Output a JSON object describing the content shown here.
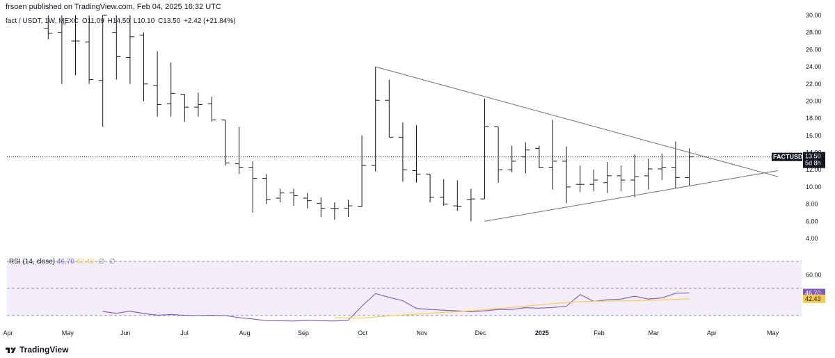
{
  "publisher_line": "frsoen published on TradingView.com, Feb 04, 2025 16:32 UTC",
  "legend": {
    "symbol": "fact / USDT, 1W, MEXC",
    "open": "O11.09",
    "high": "H14.50",
    "low": "L10.10",
    "close": "C13.50",
    "change": "+2.42 (+21.84%)"
  },
  "price_tag": {
    "symbol": "FACTUSDT",
    "price": "13.50",
    "countdown": "5d 8h"
  },
  "rsi_legend": {
    "label": "RSI (14, close)",
    "rsi": "46.70",
    "ma": "42.43",
    "na1": "∅",
    "na2": "∅"
  },
  "rsi_tags": {
    "rsi": "46.70",
    "ma": "42.43"
  },
  "brand": "TradingView",
  "colors": {
    "bar": "#131722",
    "line": "#787b86",
    "rsi": "#7e57c2",
    "rsi_ma": "#f7c948",
    "rsi_band": "#ede7f6"
  },
  "chart_data": [
    {
      "type": "ohlc",
      "y_ticks": [
        "30.00",
        "28.00",
        "26.00",
        "24.00",
        "22.00",
        "20.00",
        "18.00",
        "16.00",
        "14.00",
        "12.00",
        "10.00",
        "8.00",
        "6.00",
        "4.00"
      ],
      "ylim": [
        3,
        30
      ],
      "x_ticks": [
        "Apr",
        "May",
        "Jun",
        "Jul",
        "Aug",
        "Sep",
        "Oct",
        "Nov",
        "Dec",
        "2025",
        "Feb",
        "Mar",
        "Apr",
        "May"
      ],
      "x_ticks_week": [
        0,
        4.3,
        8.6,
        13,
        17.3,
        21.6,
        26,
        30.3,
        34.6,
        39,
        43.3,
        47.3,
        51.6,
        56
      ],
      "bars": [
        {
          "w": 3,
          "o": 28.5,
          "h": 30,
          "l": 27.2,
          "c": 27.9
        },
        {
          "w": 4,
          "o": 28.0,
          "h": 30,
          "l": 22,
          "c": 29.0
        },
        {
          "w": 5,
          "o": 27.0,
          "h": 30,
          "l": 23,
          "c": 27.0
        },
        {
          "w": 6,
          "o": 26.9,
          "h": 30,
          "l": 22,
          "c": 22.5
        },
        {
          "w": 7,
          "o": 22.4,
          "h": 30,
          "l": 17,
          "c": 30
        },
        {
          "w": 8,
          "o": 28.0,
          "h": 30,
          "l": 22.5,
          "c": 25.2
        },
        {
          "w": 9,
          "o": 25.1,
          "h": 30,
          "l": 22,
          "c": 27.5
        },
        {
          "w": 10,
          "o": 27.7,
          "h": 28,
          "l": 20,
          "c": 22
        },
        {
          "w": 11,
          "o": 21.8,
          "h": 25.8,
          "l": 18.2,
          "c": 19.6
        },
        {
          "w": 12,
          "o": 19.7,
          "h": 24.5,
          "l": 18.2,
          "c": 20.9
        },
        {
          "w": 13,
          "o": 20.8,
          "h": 20.8,
          "l": 17.6,
          "c": 19.3
        },
        {
          "w": 14,
          "o": 19.3,
          "h": 21,
          "l": 18.2,
          "c": 19.6
        },
        {
          "w": 15,
          "o": 19.7,
          "h": 20.5,
          "l": 17.6,
          "c": 17.8
        },
        {
          "w": 16,
          "o": 17.8,
          "h": 17.8,
          "l": 12.5,
          "c": 12.8
        },
        {
          "w": 17,
          "o": 12.7,
          "h": 17,
          "l": 11.5,
          "c": 12.3
        },
        {
          "w": 18,
          "o": 12.3,
          "h": 13,
          "l": 7.0,
          "c": 11.0
        },
        {
          "w": 19,
          "o": 11.0,
          "h": 11.5,
          "l": 8.0,
          "c": 8.5
        },
        {
          "w": 20,
          "o": 8.7,
          "h": 9.8,
          "l": 8.2,
          "c": 9.3
        },
        {
          "w": 21,
          "o": 9.3,
          "h": 9.8,
          "l": 7.8,
          "c": 9.0
        },
        {
          "w": 22,
          "o": 8.7,
          "h": 9.3,
          "l": 7.5,
          "c": 8.4
        },
        {
          "w": 23,
          "o": 8.1,
          "h": 8.8,
          "l": 6.5,
          "c": 7.5
        },
        {
          "w": 24,
          "o": 7.5,
          "h": 8.2,
          "l": 6.2,
          "c": 7.5
        },
        {
          "w": 25,
          "o": 7.5,
          "h": 8.5,
          "l": 6.5,
          "c": 7.8
        },
        {
          "w": 26,
          "o": 7.7,
          "h": 16,
          "l": 7.7,
          "c": 12.5
        },
        {
          "w": 27,
          "o": 12.5,
          "h": 24.0,
          "l": 11.8,
          "c": 20.1
        },
        {
          "w": 28,
          "o": 20.1,
          "h": 22.5,
          "l": 15.8,
          "c": 15.8
        },
        {
          "w": 29,
          "o": 15.8,
          "h": 17.5,
          "l": 10.6,
          "c": 12.0
        },
        {
          "w": 30,
          "o": 11.9,
          "h": 17.2,
          "l": 10.5,
          "c": 11.5
        },
        {
          "w": 31,
          "o": 11.5,
          "h": 11.5,
          "l": 8.2,
          "c": 8.8
        },
        {
          "w": 32,
          "o": 8.8,
          "h": 10.9,
          "l": 7.8,
          "c": 8.0
        },
        {
          "w": 33,
          "o": 7.8,
          "h": 10.8,
          "l": 7.2,
          "c": 7.7
        },
        {
          "w": 34,
          "o": 8.5,
          "h": 9.8,
          "l": 6.0,
          "c": 8.6
        },
        {
          "w": 35,
          "o": 8.6,
          "h": 20.3,
          "l": 8.6,
          "c": 17.0
        },
        {
          "w": 36,
          "o": 17.0,
          "h": 17.0,
          "l": 10.5,
          "c": 12.0
        },
        {
          "w": 37,
          "o": 12.0,
          "h": 14.8,
          "l": 11.7,
          "c": 13.0
        },
        {
          "w": 38,
          "o": 13.5,
          "h": 15.2,
          "l": 11.6,
          "c": 14.3
        },
        {
          "w": 39,
          "o": 14.5,
          "h": 14.8,
          "l": 12.2,
          "c": 12.3
        },
        {
          "w": 40,
          "o": 12.3,
          "h": 17.8,
          "l": 9.7,
          "c": 13.0
        },
        {
          "w": 41,
          "o": 13.0,
          "h": 14.7,
          "l": 8.1,
          "c": 10.0
        },
        {
          "w": 42,
          "o": 10.3,
          "h": 12.5,
          "l": 9.4,
          "c": 10.3
        },
        {
          "w": 43,
          "o": 10.3,
          "h": 12.0,
          "l": 9.5,
          "c": 10.8
        },
        {
          "w": 44,
          "o": 10.5,
          "h": 12.9,
          "l": 9.3,
          "c": 11.3
        },
        {
          "w": 45,
          "o": 11.3,
          "h": 12.5,
          "l": 9.5,
          "c": 10.8
        },
        {
          "w": 46,
          "o": 10.8,
          "h": 13.8,
          "l": 8.8,
          "c": 11.2
        },
        {
          "w": 47,
          "o": 11.3,
          "h": 13.3,
          "l": 9.7,
          "c": 12.1
        },
        {
          "w": 48,
          "o": 12.1,
          "h": 13.9,
          "l": 10.8,
          "c": 12.3
        },
        {
          "w": 49,
          "o": 12.3,
          "h": 15.3,
          "l": 9.8,
          "c": 11.1
        },
        {
          "w": 50,
          "o": 11.09,
          "h": 14.5,
          "l": 10.1,
          "c": 13.5
        }
      ],
      "last_close": 13.5,
      "trendlines": [
        {
          "from": {
            "w": 27,
            "v": 24.0
          },
          "to": {
            "w": 56.5,
            "v": 11.2
          }
        },
        {
          "from": {
            "w": 35,
            "v": 6.0
          },
          "to": {
            "w": 56.5,
            "v": 11.9
          }
        }
      ]
    },
    {
      "type": "line",
      "title": "RSI (14, close)",
      "y_ticks": [
        "60.00"
      ],
      "ylim": [
        20,
        68
      ],
      "bands": [
        70,
        50,
        30
      ],
      "series": [
        {
          "name": "RSI",
          "points": [
            [
              7,
              33.0
            ],
            [
              8,
              31.7
            ],
            [
              9,
              33.3
            ],
            [
              10,
              31.5
            ],
            [
              11,
              30.3
            ],
            [
              12,
              30.8
            ],
            [
              13,
              30.2
            ],
            [
              14,
              30.0
            ],
            [
              15,
              30.2
            ],
            [
              16,
              30.0
            ],
            [
              17,
              28.5
            ],
            [
              18,
              27.5
            ],
            [
              19,
              26.3
            ],
            [
              20,
              26.2
            ],
            [
              21,
              26.0
            ],
            [
              22,
              26.5
            ],
            [
              23,
              26.2
            ],
            [
              24,
              26.0
            ],
            [
              25,
              26.6
            ],
            [
              26,
              37.0
            ],
            [
              27,
              46.2
            ],
            [
              28,
              43.5
            ],
            [
              29,
              41.0
            ],
            [
              30,
              35.3
            ],
            [
              31,
              34.5
            ],
            [
              32,
              34.0
            ],
            [
              33,
              33.5
            ],
            [
              34,
              32.8
            ],
            [
              35,
              33.5
            ],
            [
              36,
              34.5
            ],
            [
              37,
              34.5
            ],
            [
              38,
              35.8
            ],
            [
              39,
              35.5
            ],
            [
              40,
              36.0
            ],
            [
              41,
              37.0
            ],
            [
              42,
              45.5
            ],
            [
              43,
              40.5
            ],
            [
              44,
              41.7
            ],
            [
              45,
              42.2
            ],
            [
              46,
              44.3
            ],
            [
              47,
              42.2
            ],
            [
              48,
              43.0
            ],
            [
              49,
              46.5
            ],
            [
              50,
              46.7
            ]
          ]
        },
        {
          "name": "RSI-based MA",
          "points": [
            [
              24,
              28.5
            ],
            [
              26,
              28.2
            ],
            [
              28,
              29.8
            ],
            [
              30,
              31.0
            ],
            [
              32,
              32.4
            ],
            [
              34,
              33.5
            ],
            [
              36,
              35.2
            ],
            [
              38,
              37.0
            ],
            [
              40,
              38.8
            ],
            [
              42,
              40.3
            ],
            [
              44,
              40.7
            ],
            [
              46,
              41.0
            ],
            [
              48,
              41.5
            ],
            [
              50,
              42.43
            ]
          ]
        }
      ]
    }
  ]
}
